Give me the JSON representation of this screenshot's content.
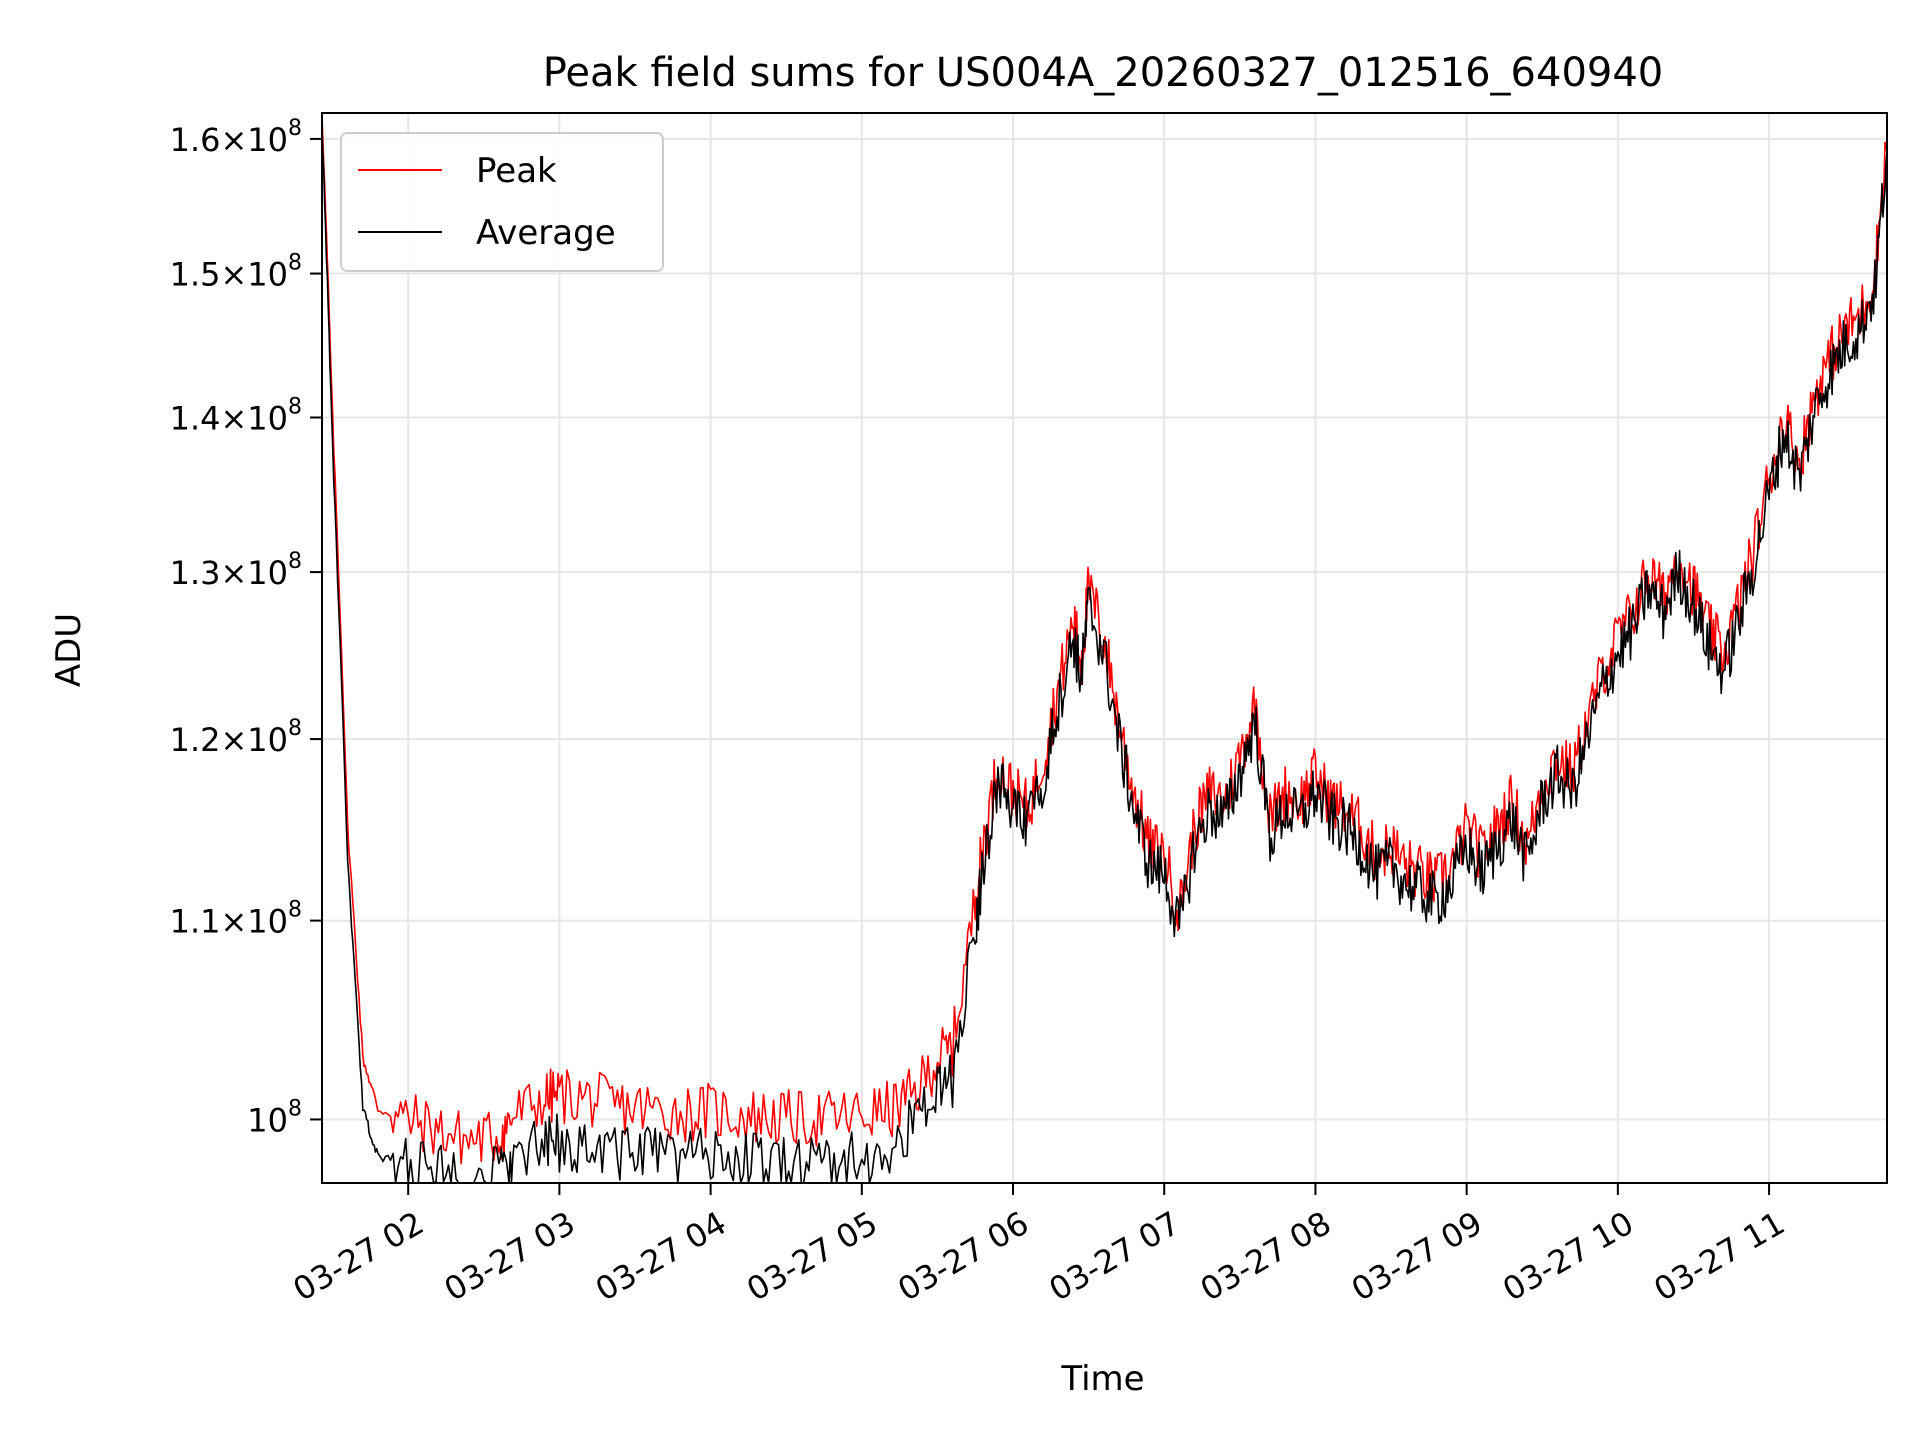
{
  "chart_data": {
    "type": "line",
    "title": "Peak field sums for US004A_20260327_012516_640940",
    "xlabel": "Time",
    "ylabel": "ADU",
    "y_scale": "log",
    "grid": true,
    "legend_position": "upper-left",
    "x_tick_labels": [
      "03-27 02",
      "03-27 03",
      "03-27 04",
      "03-27 05",
      "03-27 06",
      "03-27 07",
      "03-27 08",
      "03-27 09",
      "03-27 10",
      "03-27 11"
    ],
    "x_tick_hours": [
      2,
      3,
      4,
      5,
      6,
      7,
      8,
      9,
      10,
      11
    ],
    "x_range_hours": [
      1.43,
      11.78
    ],
    "y_range": [
      97000000,
      162000000
    ],
    "y_ticks": [
      {
        "value": 100000000,
        "mantissa": "",
        "exponent": "8"
      },
      {
        "value": 110000000,
        "mantissa": "1.1",
        "exponent": "8"
      },
      {
        "value": 120000000,
        "mantissa": "1.2",
        "exponent": "8"
      },
      {
        "value": 130000000,
        "mantissa": "1.3",
        "exponent": "8"
      },
      {
        "value": 140000000,
        "mantissa": "1.4",
        "exponent": "8"
      },
      {
        "value": 150000000,
        "mantissa": "1.5",
        "exponent": "8"
      },
      {
        "value": 160000000,
        "mantissa": "1.6",
        "exponent": "8"
      }
    ],
    "y_tick_times_symbol": "×",
    "y_tick_base": "10",
    "series": [
      {
        "name": "Peak",
        "color": "#ff0000",
        "x_hours": [
          1.43,
          1.5,
          1.6,
          1.7,
          1.8,
          2.0,
          2.2,
          2.4,
          2.6,
          2.7,
          2.9,
          3.0,
          3.2,
          3.4,
          3.6,
          3.8,
          4.0,
          4.2,
          4.4,
          4.6,
          4.8,
          5.0,
          5.2,
          5.35,
          5.5,
          5.6,
          5.75,
          5.8,
          5.9,
          6.0,
          6.1,
          6.2,
          6.3,
          6.4,
          6.45,
          6.5,
          6.6,
          6.7,
          6.8,
          6.9,
          7.0,
          7.1,
          7.2,
          7.3,
          7.4,
          7.5,
          7.6,
          7.7,
          7.8,
          7.9,
          8.0,
          8.1,
          8.2,
          8.3,
          8.4,
          8.5,
          8.6,
          8.7,
          8.8,
          8.9,
          9.0,
          9.1,
          9.2,
          9.3,
          9.4,
          9.5,
          9.6,
          9.7,
          9.8,
          9.9,
          10.0,
          10.1,
          10.2,
          10.3,
          10.4,
          10.5,
          10.6,
          10.7,
          10.8,
          10.9,
          11.0,
          11.1,
          11.2,
          11.3,
          11.4,
          11.5,
          11.6,
          11.7,
          11.78
        ],
        "values": [
          162000000,
          140000000,
          115000000,
          103000000,
          100500000,
          100000000,
          99500000,
          99000000,
          99200000,
          100200000,
          101000000,
          101200000,
          101000000,
          100600000,
          100500000,
          100300000,
          100400000,
          100200000,
          100100000,
          100000000,
          100100000,
          100200000,
          100500000,
          101200000,
          103000000,
          103500000,
          111000000,
          114000000,
          118500000,
          117000000,
          116000000,
          119000000,
          123000000,
          127000000,
          124500000,
          129000000,
          126000000,
          121000000,
          117000000,
          114000000,
          113500000,
          110500000,
          115000000,
          117000000,
          116500000,
          119000000,
          122000000,
          115500000,
          117000000,
          116500000,
          118000000,
          116500000,
          116000000,
          115000000,
          113500000,
          114000000,
          113000000,
          112500000,
          112000000,
          113000000,
          115000000,
          113500000,
          115000000,
          116500000,
          114000000,
          117500000,
          119000000,
          118000000,
          121000000,
          124000000,
          126000000,
          127500000,
          130000000,
          128500000,
          131000000,
          129000000,
          126500000,
          125000000,
          128000000,
          131500000,
          136000000,
          140000000,
          137000000,
          141500000,
          144000000,
          146000000,
          147000000,
          150000000,
          160000000
        ]
      },
      {
        "name": "Average",
        "color": "#000000",
        "x_hours": [
          1.43,
          1.5,
          1.6,
          1.7,
          1.8,
          2.0,
          2.2,
          2.4,
          2.6,
          2.7,
          2.9,
          3.0,
          3.2,
          3.4,
          3.6,
          3.8,
          4.0,
          4.2,
          4.4,
          4.6,
          4.8,
          5.0,
          5.2,
          5.35,
          5.5,
          5.6,
          5.75,
          5.8,
          5.9,
          6.0,
          6.1,
          6.2,
          6.3,
          6.4,
          6.45,
          6.5,
          6.6,
          6.7,
          6.8,
          6.9,
          7.0,
          7.1,
          7.2,
          7.3,
          7.4,
          7.5,
          7.6,
          7.7,
          7.8,
          7.9,
          8.0,
          8.1,
          8.2,
          8.3,
          8.4,
          8.5,
          8.6,
          8.7,
          8.8,
          8.9,
          9.0,
          9.1,
          9.2,
          9.3,
          9.4,
          9.5,
          9.6,
          9.7,
          9.8,
          9.9,
          10.0,
          10.1,
          10.2,
          10.3,
          10.4,
          10.5,
          10.6,
          10.7,
          10.8,
          10.9,
          11.0,
          11.1,
          11.2,
          11.3,
          11.4,
          11.5,
          11.6,
          11.7,
          11.78
        ],
        "values": [
          161000000,
          138000000,
          113000000,
          100500000,
          98200000,
          97800000,
          97500000,
          97300000,
          97500000,
          98200000,
          98700000,
          98900000,
          98700000,
          98500000,
          98400000,
          98200000,
          98300000,
          98100000,
          98000000,
          97900000,
          98000000,
          98100000,
          98300000,
          100000000,
          101500000,
          101800000,
          109500000,
          113000000,
          117500000,
          116000000,
          115000000,
          118000000,
          122000000,
          126000000,
          123500000,
          128000000,
          125000000,
          120000000,
          116000000,
          113000000,
          112500000,
          109500000,
          114000000,
          116000000,
          115500000,
          118000000,
          121000000,
          114500000,
          116000000,
          115500000,
          117000000,
          115500000,
          115000000,
          114000000,
          112500000,
          113000000,
          112000000,
          111500000,
          111000000,
          112000000,
          114000000,
          112500000,
          114000000,
          115500000,
          113000000,
          116500000,
          118000000,
          117000000,
          120000000,
          123000000,
          125000000,
          126500000,
          129000000,
          127500000,
          130000000,
          128000000,
          125500000,
          124000000,
          127000000,
          130500000,
          135000000,
          139000000,
          136000000,
          140500000,
          143000000,
          145000000,
          146000000,
          149000000,
          159000000
        ]
      }
    ]
  }
}
